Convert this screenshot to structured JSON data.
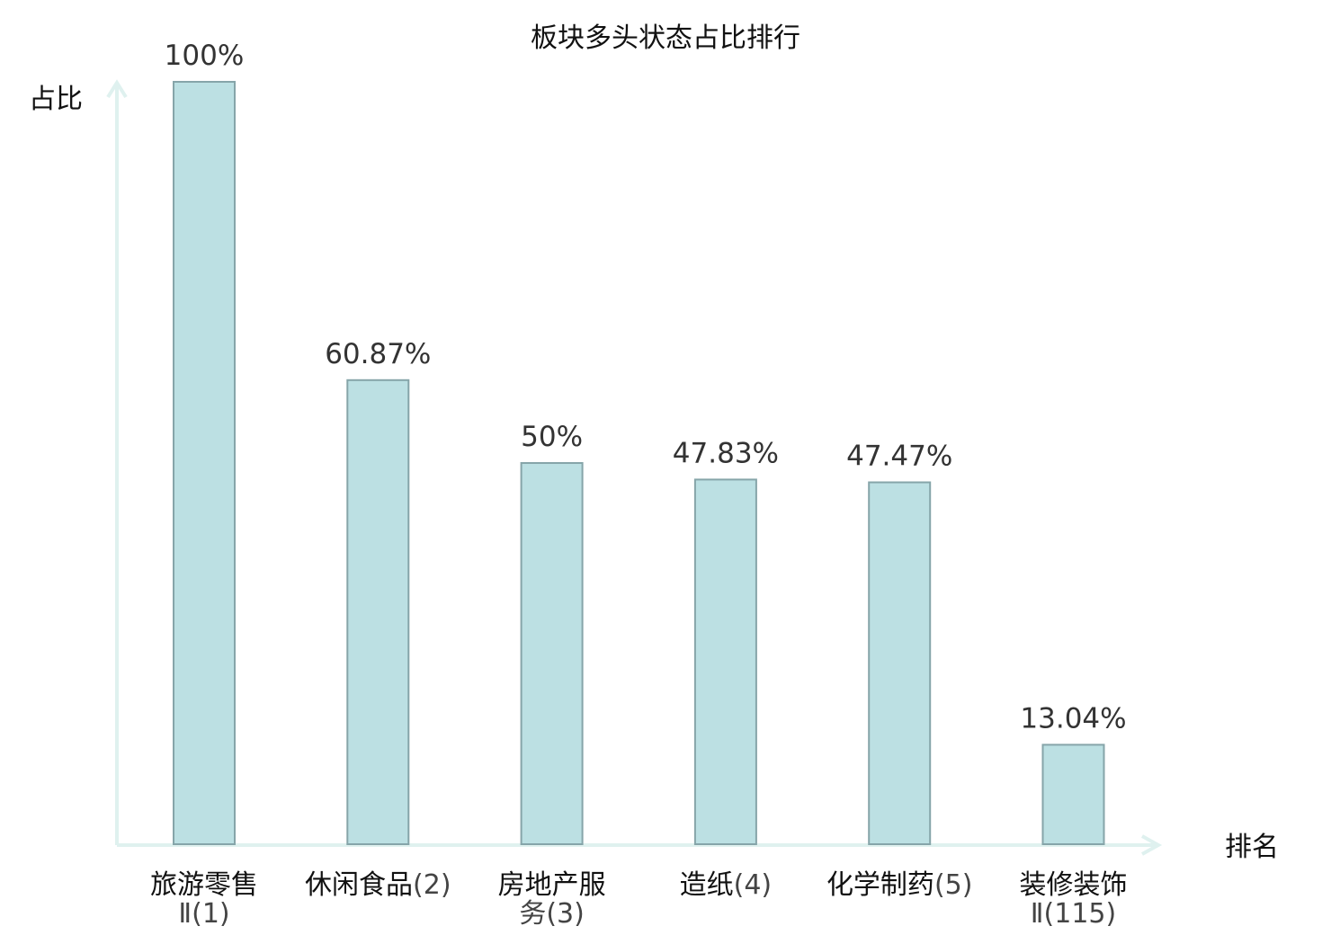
{
  "chart_data": {
    "type": "bar",
    "title": "板块多头状态占比排行",
    "ylabel": "占比",
    "xlabel": "排名",
    "ylim": [
      0,
      100
    ],
    "grid": false,
    "categories": [
      {
        "line1": "旅游零售",
        "line2": "Ⅱ(1)",
        "highlight": false
      },
      {
        "line1": "休闲食品",
        "line2": "(2)",
        "highlight": false,
        "inline": true
      },
      {
        "line1": "房地产服",
        "line2": "务(3)",
        "highlight": false
      },
      {
        "line1": "造纸",
        "line2": "(4)",
        "highlight": false,
        "inline": true
      },
      {
        "line1": "化学制药",
        "line2": "(5)",
        "highlight": false,
        "inline": true
      },
      {
        "line1": "装修装饰",
        "line2": "Ⅱ(115)",
        "highlight": true
      }
    ],
    "values": [
      100,
      60.87,
      50,
      47.83,
      47.47,
      13.04
    ],
    "value_labels": [
      "100%",
      "60.87%",
      "50%",
      "47.83%",
      "47.47%",
      "13.04%"
    ]
  },
  "colors": {
    "bar_fill": "#bce0e3",
    "bar_stroke": "#86a5a9",
    "axis": "#dff1ef",
    "highlight": "#e02020"
  }
}
